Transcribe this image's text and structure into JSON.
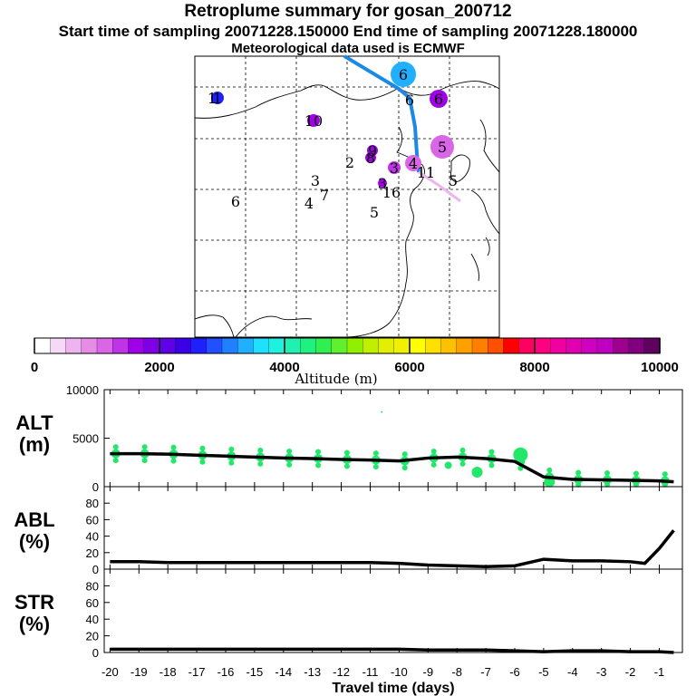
{
  "header": {
    "title": "Retroplume summary for gosan_200712",
    "sampling": "Start time of sampling 20071228.150000     End time of sampling 20071228.180000",
    "meteo": "Meteorological data used is ECMWF"
  },
  "chart_data": [
    {
      "type": "map",
      "title": "Retroplume summary for gosan_200712",
      "colorbar": {
        "label": "Altitude (m)",
        "min": 0,
        "max": 10000,
        "ticks": [
          0,
          2000,
          4000,
          6000,
          8000,
          10000
        ],
        "colors": [
          "#ffffff",
          "#f7d9f7",
          "#efb3ef",
          "#e68ce6",
          "#d966e6",
          "#c033e6",
          "#a000e6",
          "#8000e6",
          "#6000e6",
          "#3c00e6",
          "#2020ff",
          "#2050ff",
          "#2080ff",
          "#20b0ff",
          "#20e0ff",
          "#20f0e0",
          "#20f0b0",
          "#20f080",
          "#30f050",
          "#60f030",
          "#90f000",
          "#c0f000",
          "#e0f000",
          "#f0f000",
          "#ffff00",
          "#ffe000",
          "#ffc000",
          "#ffa000",
          "#ff8000",
          "#ff5000",
          "#ff0000",
          "#ff0060",
          "#ff0080",
          "#f000a0",
          "#e000b0",
          "#d000c0",
          "#c000c0",
          "#a00090",
          "#800080",
          "#600060"
        ]
      },
      "labels": [
        {
          "text": "1",
          "x": 240,
          "y": 108,
          "color": "#2020ff",
          "r": 7
        },
        {
          "text": "1",
          "x": 234,
          "y": 108,
          "color": "#2020ff",
          "r": 0
        },
        {
          "text": "10",
          "x": 346,
          "y": 133,
          "color": "#a000e6",
          "r": 7
        },
        {
          "text": "6",
          "x": 445,
          "y": 82,
          "color": "#20b0ff",
          "r": 14
        },
        {
          "text": "6",
          "x": 484,
          "y": 109,
          "color": "#a000e6",
          "r": 10
        },
        {
          "text": "6",
          "x": 452,
          "y": 110,
          "color": "#000000",
          "r": 0
        },
        {
          "text": "5",
          "x": 488,
          "y": 162,
          "color": "#d966e6",
          "r": 13
        },
        {
          "text": "9",
          "x": 411,
          "y": 166,
          "color": "#a000e6",
          "r": 6
        },
        {
          "text": "8",
          "x": 409,
          "y": 174,
          "color": "#a000e6",
          "r": 6
        },
        {
          "text": "2",
          "x": 386,
          "y": 179,
          "color": "#000000",
          "r": 0
        },
        {
          "text": "3",
          "x": 435,
          "y": 185,
          "color": "#c033e6",
          "r": 7
        },
        {
          "text": "4",
          "x": 456,
          "y": 180,
          "color": "#d966e6",
          "r": 9
        },
        {
          "text": "11",
          "x": 470,
          "y": 190,
          "color": "#000000",
          "r": 0
        },
        {
          "text": "5",
          "x": 500,
          "y": 199,
          "color": "#000000",
          "r": 0
        },
        {
          "text": "3",
          "x": 348,
          "y": 199,
          "color": "#000000",
          "r": 0
        },
        {
          "text": "7",
          "x": 358,
          "y": 215,
          "color": "#000000",
          "r": 0
        },
        {
          "text": "4",
          "x": 341,
          "y": 224,
          "color": "#000000",
          "r": 0
        },
        {
          "text": "3",
          "x": 422,
          "y": 202,
          "color": "#a000e6",
          "r": 5
        },
        {
          "text": "16",
          "x": 432,
          "y": 212,
          "color": "#000000",
          "r": 0
        },
        {
          "text": "5",
          "x": 413,
          "y": 234,
          "color": "#000000",
          "r": 0
        },
        {
          "text": "6",
          "x": 260,
          "y": 222,
          "color": "#000000",
          "r": 0
        }
      ]
    },
    {
      "type": "line",
      "id": "alt",
      "panel_label": "ALT (m)",
      "ylabel_top": "ALT",
      "ylabel_bottom": "(m)",
      "ylim": [
        0,
        10000
      ],
      "yticks": [
        0,
        5000,
        10000
      ],
      "x": [
        -20,
        -19,
        -18,
        -17,
        -16,
        -15,
        -14,
        -13,
        -12,
        -11,
        -10,
        -9,
        -8,
        -7,
        -6,
        -5,
        -4,
        -3,
        -2,
        -1,
        -0.5
      ],
      "values": [
        3400,
        3400,
        3350,
        3250,
        3150,
        3050,
        2950,
        2900,
        2800,
        2750,
        2650,
        2950,
        3050,
        2900,
        2600,
        1000,
        750,
        700,
        650,
        600,
        500
      ]
    },
    {
      "type": "line",
      "id": "abl",
      "panel_label": "ABL (%)",
      "ylabel_top": "ABL",
      "ylabel_bottom": "(%)",
      "ylim": [
        0,
        100
      ],
      "yticks": [
        0,
        20,
        40,
        60,
        80
      ],
      "x": [
        -20,
        -19,
        -18,
        -17,
        -16,
        -15,
        -14,
        -13,
        -12,
        -11,
        -10,
        -9,
        -8,
        -7,
        -6,
        -5,
        -4,
        -3,
        -2,
        -1.5,
        -1,
        -0.5
      ],
      "values": [
        9,
        9,
        8,
        8,
        8,
        8,
        8,
        8,
        8,
        8,
        7,
        5,
        4,
        3,
        4,
        12,
        10,
        10,
        9,
        7,
        25,
        47
      ]
    },
    {
      "type": "line",
      "id": "str",
      "panel_label": "STR (%)",
      "ylabel_top": "STR",
      "ylabel_bottom": "(%)",
      "ylim": [
        0,
        100
      ],
      "yticks": [
        0,
        20,
        40,
        60,
        80
      ],
      "xlabel": "Travel time (days)",
      "xticks": [
        -20,
        -19,
        -18,
        -17,
        -16,
        -15,
        -14,
        -13,
        -12,
        -11,
        -10,
        -9,
        -8,
        -7,
        -6,
        -5,
        -4,
        -3,
        -2,
        -1
      ],
      "x": [
        -20,
        -19,
        -18,
        -17,
        -16,
        -15,
        -14,
        -13,
        -12,
        -11,
        -10,
        -9,
        -8,
        -7,
        -6,
        -5,
        -4,
        -3,
        -2,
        -1,
        -0.5
      ],
      "values": [
        4,
        4,
        4,
        4,
        4,
        4,
        4,
        4,
        4,
        4,
        4,
        3,
        3,
        3,
        2,
        1,
        2,
        2,
        1,
        1,
        0
      ]
    }
  ]
}
